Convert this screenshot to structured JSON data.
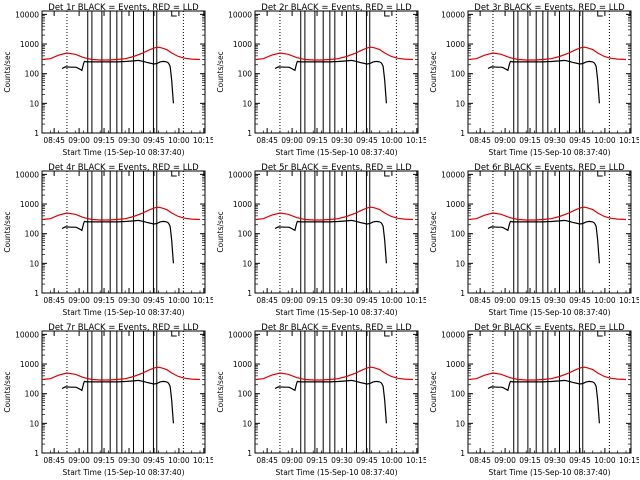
{
  "chart_data": {
    "type": "line",
    "panels": [
      {
        "title": "Det 1r BLACK = Events, RED = LLD"
      },
      {
        "title": "Det 2r BLACK = Events, RED = LLD"
      },
      {
        "title": "Det 3r BLACK = Events, RED = LLD"
      },
      {
        "title": "Det 4r BLACK = Events, RED = LLD"
      },
      {
        "title": "Det 5r BLACK = Events, RED = LLD"
      },
      {
        "title": "Det 6r BLACK = Events, RED = LLD"
      },
      {
        "title": "Det 7r BLACK = Events, RED = LLD"
      },
      {
        "title": "Det 8r BLACK = Events, RED = LLD"
      },
      {
        "title": "Det 9r BLACK = Events, RED = LLD"
      }
    ],
    "xlabel": "Start Time (15-Sep-10 08:37:40)",
    "ylabel": "Counts/sec",
    "xticks": [
      "08:45",
      "09:00",
      "09:15",
      "09:30",
      "09:45",
      "10:00",
      "10:15"
    ],
    "xticks_min": [
      7.3,
      22.3,
      37.3,
      52.3,
      67.3,
      82.3,
      97.3
    ],
    "xlim_min": [
      0,
      98
    ],
    "yscale": "log",
    "yticks": [
      "1",
      "10",
      "100",
      "1000",
      "10000"
    ],
    "ylim": [
      1,
      13000
    ],
    "dotted_vlines_min": [
      15,
      85
    ],
    "solid_vlines_min": [
      27.5,
      30,
      36,
      41,
      45,
      48,
      55,
      61,
      67,
      69
    ],
    "series": [
      {
        "color": "#000000",
        "x": [
          12,
          14,
          18,
          20,
          21,
          22,
          24,
          25,
          25.5,
          27,
          30,
          36,
          41,
          45,
          48,
          50,
          55,
          58,
          61,
          63,
          66,
          67,
          69,
          71,
          73,
          75,
          76,
          77,
          78,
          79
        ],
        "y": [
          150,
          170,
          165,
          165,
          160,
          150,
          130,
          220,
          260,
          250,
          250,
          250,
          250,
          250,
          255,
          258,
          270,
          280,
          260,
          240,
          220,
          210,
          220,
          250,
          260,
          250,
          230,
          180,
          60,
          10
        ]
      },
      {
        "color": "#e00000",
        "x": [
          0,
          5,
          10,
          15,
          20,
          25,
          30,
          35,
          40,
          45,
          50,
          55,
          60,
          65,
          68,
          70,
          72,
          75,
          78,
          82,
          86,
          90,
          95
        ],
        "y": [
          300,
          320,
          420,
          500,
          450,
          350,
          300,
          290,
          290,
          300,
          320,
          380,
          480,
          650,
          750,
          780,
          740,
          650,
          500,
          380,
          330,
          310,
          300
        ]
      }
    ]
  }
}
